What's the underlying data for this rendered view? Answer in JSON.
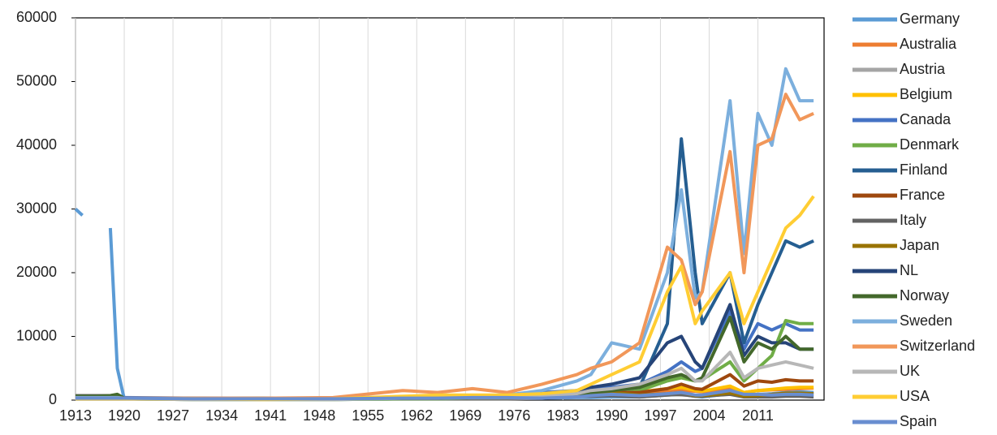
{
  "chart_data": {
    "type": "line",
    "x": [
      1913,
      1914,
      1916,
      1918,
      1919,
      1920,
      1930,
      1940,
      1950,
      1960,
      1965,
      1970,
      1975,
      1980,
      1985,
      1987,
      1990,
      1994,
      1998,
      2000,
      2002,
      2003,
      2007,
      2009,
      2011,
      2013,
      2015,
      2017,
      2019
    ],
    "xlim": [
      1913,
      2020.5
    ],
    "xticks": [
      1913,
      1920,
      1927,
      1934,
      1941,
      1948,
      1955,
      1962,
      1969,
      1976,
      1983,
      1990,
      1997,
      2004,
      2011
    ],
    "ylim": [
      0,
      60000
    ],
    "yticks": [
      0,
      10000,
      20000,
      30000,
      40000,
      50000,
      60000
    ],
    "grid": "x",
    "legend": "right",
    "series": [
      {
        "name": "Germany",
        "color": "#5B9BD5",
        "values": [
          30000,
          29000,
          null,
          27000,
          5000,
          200,
          100,
          100,
          100,
          200,
          200,
          300,
          300,
          300,
          400,
          400,
          500,
          500,
          800,
          900,
          600,
          500,
          1000,
          700,
          900,
          1000,
          1200,
          1300,
          1200
        ]
      },
      {
        "name": "Australia",
        "color": "#ED7D31",
        "values": [
          300,
          300,
          300,
          300,
          300,
          300,
          200,
          200,
          200,
          400,
          400,
          500,
          500,
          600,
          800,
          1000,
          1000,
          1200,
          1500,
          1500,
          1400,
          1300,
          1800,
          1200,
          1500,
          1600,
          1700,
          1800,
          1900
        ]
      },
      {
        "name": "Austria",
        "color": "#A5A5A5",
        "values": [
          200,
          200,
          200,
          200,
          200,
          200,
          100,
          100,
          100,
          200,
          200,
          200,
          200,
          300,
          500,
          600,
          800,
          700,
          900,
          800,
          700,
          700,
          1500,
          700,
          900,
          900,
          1000,
          1100,
          1000
        ]
      },
      {
        "name": "Belgium",
        "color": "#FFC000",
        "values": [
          300,
          300,
          300,
          300,
          300,
          300,
          300,
          200,
          200,
          400,
          400,
          500,
          500,
          600,
          800,
          1000,
          1200,
          1300,
          1800,
          2000,
          1500,
          1400,
          2200,
          1200,
          1500,
          1700,
          1900,
          2000,
          2000
        ]
      },
      {
        "name": "Canada",
        "color": "#4472C4",
        "values": [
          400,
          400,
          400,
          400,
          400,
          400,
          300,
          300,
          300,
          500,
          500,
          700,
          800,
          1200,
          1500,
          1800,
          2000,
          2500,
          4500,
          6000,
          4500,
          5000,
          14000,
          8000,
          12000,
          11000,
          12000,
          11000,
          11000
        ]
      },
      {
        "name": "Denmark",
        "color": "#70AD47",
        "values": [
          200,
          200,
          200,
          200,
          200,
          200,
          100,
          100,
          100,
          200,
          200,
          300,
          300,
          400,
          800,
          900,
          1200,
          1500,
          3000,
          3500,
          3000,
          3200,
          6000,
          3000,
          5000,
          7000,
          12500,
          12000,
          12000
        ]
      },
      {
        "name": "Finland",
        "color": "#255E91",
        "values": [
          300,
          300,
          300,
          300,
          300,
          300,
          200,
          200,
          200,
          300,
          300,
          400,
          400,
          500,
          800,
          1500,
          1500,
          2000,
          12000,
          41000,
          20000,
          12000,
          20000,
          9000,
          15000,
          20000,
          25000,
          24000,
          25000
        ]
      },
      {
        "name": "France",
        "color": "#9E480E",
        "values": [
          300,
          300,
          300,
          300,
          300,
          300,
          200,
          200,
          200,
          300,
          300,
          400,
          400,
          500,
          800,
          1000,
          1200,
          1200,
          1800,
          2500,
          1800,
          1700,
          4000,
          2200,
          3000,
          2800,
          3200,
          3000,
          3000
        ]
      },
      {
        "name": "Italy",
        "color": "#636363",
        "values": [
          700,
          700,
          700,
          700,
          800,
          300,
          200,
          200,
          200,
          300,
          300,
          300,
          300,
          300,
          600,
          600,
          700,
          500,
          800,
          900,
          600,
          600,
          900,
          500,
          500,
          500,
          600,
          600,
          500
        ]
      },
      {
        "name": "Japan",
        "color": "#997300",
        "values": [
          300,
          300,
          300,
          300,
          300,
          300,
          200,
          200,
          200,
          300,
          300,
          400,
          500,
          600,
          800,
          900,
          1200,
          800,
          1000,
          1200,
          700,
          700,
          1100,
          600,
          700,
          900,
          1100,
          1100,
          1000
        ]
      },
      {
        "name": "NL",
        "color": "#264478",
        "values": [
          500,
          500,
          500,
          500,
          500,
          300,
          300,
          200,
          300,
          400,
          400,
          500,
          600,
          800,
          1500,
          2000,
          2500,
          3500,
          9000,
          10000,
          6000,
          5000,
          15000,
          7000,
          10000,
          9000,
          9000,
          8000,
          8000
        ]
      },
      {
        "name": "Norway",
        "color": "#43682B",
        "values": [
          600,
          600,
          600,
          700,
          900,
          300,
          200,
          300,
          200,
          300,
          300,
          400,
          400,
          600,
          1000,
          1200,
          1500,
          2000,
          3500,
          4000,
          3000,
          3500,
          13000,
          6000,
          9000,
          8000,
          10000,
          8000,
          8000
        ]
      },
      {
        "name": "Sweden",
        "color": "#7CAFDD",
        "values": [
          400,
          400,
          400,
          400,
          400,
          300,
          200,
          200,
          200,
          400,
          400,
          600,
          800,
          1500,
          3000,
          4000,
          9000,
          8000,
          20000,
          33000,
          16000,
          17000,
          47000,
          23000,
          45000,
          40000,
          52000,
          47000,
          47000
        ]
      },
      {
        "name": "Switzerland",
        "color": "#F1975A",
        "values": [
          300,
          300,
          300,
          300,
          300,
          300,
          300,
          300,
          400,
          1500,
          1200,
          1800,
          1200,
          2500,
          4000,
          5000,
          6000,
          9000,
          24000,
          22000,
          15000,
          17000,
          39000,
          20000,
          40000,
          41000,
          48000,
          44000,
          45000
        ]
      },
      {
        "name": "UK",
        "color": "#B7B7B7",
        "values": [
          200,
          200,
          200,
          200,
          200,
          200,
          100,
          100,
          100,
          300,
          300,
          400,
          400,
          600,
          1000,
          1500,
          1800,
          2500,
          4000,
          5000,
          3000,
          3000,
          7500,
          3500,
          5000,
          5500,
          6000,
          5500,
          5000
        ]
      },
      {
        "name": "USA",
        "color": "#FFCD33",
        "values": [
          200,
          200,
          200,
          200,
          200,
          200,
          200,
          100,
          200,
          600,
          800,
          800,
          800,
          1000,
          1500,
          2500,
          4000,
          6000,
          17000,
          21000,
          12000,
          14000,
          20000,
          12000,
          17000,
          22000,
          27000,
          29000,
          32000
        ]
      },
      {
        "name": "Spain",
        "color": "#698ED0",
        "values": [
          300,
          300,
          300,
          300,
          300,
          300,
          200,
          200,
          200,
          300,
          300,
          400,
          400,
          300,
          500,
          700,
          900,
          700,
          1000,
          1200,
          800,
          800,
          1500,
          900,
          900,
          800,
          900,
          900,
          800
        ]
      }
    ]
  }
}
